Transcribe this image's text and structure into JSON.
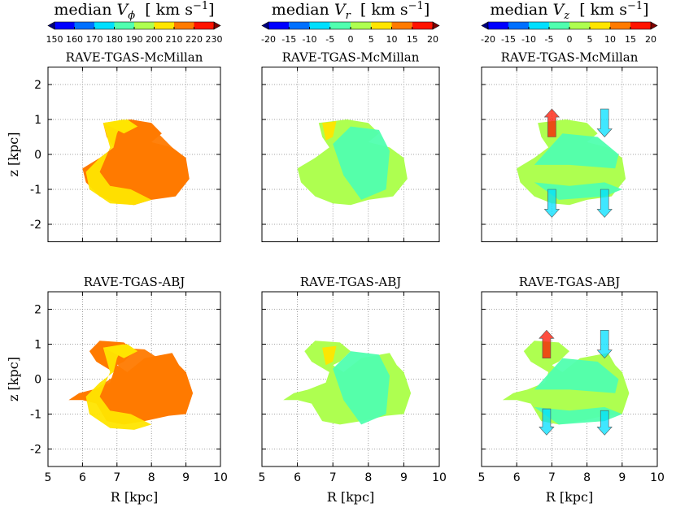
{
  "colorbars": [
    {
      "title": {
        "text": "median ",
        "symbol": "V",
        "subscript": "ϕ",
        "unit": "  [ km s",
        "exponent": "−1",
        "close": "]"
      },
      "ticks": [
        150,
        160,
        170,
        180,
        190,
        200,
        210,
        220,
        230
      ]
    },
    {
      "title": {
        "text": "median ",
        "symbol": "V",
        "subscript": "r",
        "unit": "  [ km s",
        "exponent": "−1",
        "close": "]"
      },
      "ticks": [
        -20,
        -15,
        -10,
        -5,
        0,
        5,
        10,
        15,
        20
      ]
    },
    {
      "title": {
        "text": "median ",
        "symbol": "V",
        "subscript": "z",
        "unit": "  [ km s",
        "exponent": "−1",
        "close": "]"
      },
      "ticks": [
        -20,
        -15,
        -10,
        -5,
        0,
        5,
        10,
        15,
        20
      ]
    }
  ],
  "colormap": [
    "#00007f",
    "#0000ff",
    "#0070ff",
    "#00dfff",
    "#50ffaf",
    "#aeff50",
    "#ffe500",
    "#ff7a00",
    "#ff1300",
    "#7f0000"
  ],
  "rows": [
    {
      "title": "RAVE-TGAS-McMillan"
    },
    {
      "title": "RAVE-TGAS-ABJ"
    }
  ],
  "axes": {
    "xlim": [
      5,
      10
    ],
    "xticks": [
      5,
      6,
      7,
      8,
      9,
      10
    ],
    "ylim": [
      -2.5,
      2.5
    ],
    "yticks": [
      -2,
      -1,
      0,
      1,
      2
    ],
    "xlabel": "R [kpc]",
    "ylabel": "z [kpc]",
    "grid": true
  }
}
